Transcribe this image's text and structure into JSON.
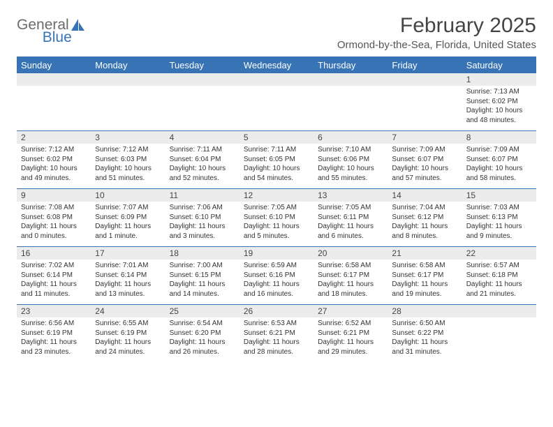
{
  "brand": {
    "text1": "General",
    "text2": "Blue"
  },
  "title": "February 2025",
  "location": "Ormond-by-the-Sea, Florida, United States",
  "colors": {
    "accent": "#3773b5",
    "header_text": "#ffffff",
    "num_bg": "#ececec",
    "body_bg": "#ffffff",
    "text": "#333333",
    "logo_grey": "#6b6b6b"
  },
  "day_names": [
    "Sunday",
    "Monday",
    "Tuesday",
    "Wednesday",
    "Thursday",
    "Friday",
    "Saturday"
  ],
  "weeks": [
    {
      "nums": [
        "",
        "",
        "",
        "",
        "",
        "",
        "1"
      ],
      "cells": [
        {},
        {},
        {},
        {},
        {},
        {},
        {
          "sunrise": "Sunrise: 7:13 AM",
          "sunset": "Sunset: 6:02 PM",
          "daylight": "Daylight: 10 hours and 48 minutes."
        }
      ]
    },
    {
      "nums": [
        "2",
        "3",
        "4",
        "5",
        "6",
        "7",
        "8"
      ],
      "cells": [
        {
          "sunrise": "Sunrise: 7:12 AM",
          "sunset": "Sunset: 6:02 PM",
          "daylight": "Daylight: 10 hours and 49 minutes."
        },
        {
          "sunrise": "Sunrise: 7:12 AM",
          "sunset": "Sunset: 6:03 PM",
          "daylight": "Daylight: 10 hours and 51 minutes."
        },
        {
          "sunrise": "Sunrise: 7:11 AM",
          "sunset": "Sunset: 6:04 PM",
          "daylight": "Daylight: 10 hours and 52 minutes."
        },
        {
          "sunrise": "Sunrise: 7:11 AM",
          "sunset": "Sunset: 6:05 PM",
          "daylight": "Daylight: 10 hours and 54 minutes."
        },
        {
          "sunrise": "Sunrise: 7:10 AM",
          "sunset": "Sunset: 6:06 PM",
          "daylight": "Daylight: 10 hours and 55 minutes."
        },
        {
          "sunrise": "Sunrise: 7:09 AM",
          "sunset": "Sunset: 6:07 PM",
          "daylight": "Daylight: 10 hours and 57 minutes."
        },
        {
          "sunrise": "Sunrise: 7:09 AM",
          "sunset": "Sunset: 6:07 PM",
          "daylight": "Daylight: 10 hours and 58 minutes."
        }
      ]
    },
    {
      "nums": [
        "9",
        "10",
        "11",
        "12",
        "13",
        "14",
        "15"
      ],
      "cells": [
        {
          "sunrise": "Sunrise: 7:08 AM",
          "sunset": "Sunset: 6:08 PM",
          "daylight": "Daylight: 11 hours and 0 minutes."
        },
        {
          "sunrise": "Sunrise: 7:07 AM",
          "sunset": "Sunset: 6:09 PM",
          "daylight": "Daylight: 11 hours and 1 minute."
        },
        {
          "sunrise": "Sunrise: 7:06 AM",
          "sunset": "Sunset: 6:10 PM",
          "daylight": "Daylight: 11 hours and 3 minutes."
        },
        {
          "sunrise": "Sunrise: 7:05 AM",
          "sunset": "Sunset: 6:10 PM",
          "daylight": "Daylight: 11 hours and 5 minutes."
        },
        {
          "sunrise": "Sunrise: 7:05 AM",
          "sunset": "Sunset: 6:11 PM",
          "daylight": "Daylight: 11 hours and 6 minutes."
        },
        {
          "sunrise": "Sunrise: 7:04 AM",
          "sunset": "Sunset: 6:12 PM",
          "daylight": "Daylight: 11 hours and 8 minutes."
        },
        {
          "sunrise": "Sunrise: 7:03 AM",
          "sunset": "Sunset: 6:13 PM",
          "daylight": "Daylight: 11 hours and 9 minutes."
        }
      ]
    },
    {
      "nums": [
        "16",
        "17",
        "18",
        "19",
        "20",
        "21",
        "22"
      ],
      "cells": [
        {
          "sunrise": "Sunrise: 7:02 AM",
          "sunset": "Sunset: 6:14 PM",
          "daylight": "Daylight: 11 hours and 11 minutes."
        },
        {
          "sunrise": "Sunrise: 7:01 AM",
          "sunset": "Sunset: 6:14 PM",
          "daylight": "Daylight: 11 hours and 13 minutes."
        },
        {
          "sunrise": "Sunrise: 7:00 AM",
          "sunset": "Sunset: 6:15 PM",
          "daylight": "Daylight: 11 hours and 14 minutes."
        },
        {
          "sunrise": "Sunrise: 6:59 AM",
          "sunset": "Sunset: 6:16 PM",
          "daylight": "Daylight: 11 hours and 16 minutes."
        },
        {
          "sunrise": "Sunrise: 6:58 AM",
          "sunset": "Sunset: 6:17 PM",
          "daylight": "Daylight: 11 hours and 18 minutes."
        },
        {
          "sunrise": "Sunrise: 6:58 AM",
          "sunset": "Sunset: 6:17 PM",
          "daylight": "Daylight: 11 hours and 19 minutes."
        },
        {
          "sunrise": "Sunrise: 6:57 AM",
          "sunset": "Sunset: 6:18 PM",
          "daylight": "Daylight: 11 hours and 21 minutes."
        }
      ]
    },
    {
      "nums": [
        "23",
        "24",
        "25",
        "26",
        "27",
        "28",
        ""
      ],
      "cells": [
        {
          "sunrise": "Sunrise: 6:56 AM",
          "sunset": "Sunset: 6:19 PM",
          "daylight": "Daylight: 11 hours and 23 minutes."
        },
        {
          "sunrise": "Sunrise: 6:55 AM",
          "sunset": "Sunset: 6:19 PM",
          "daylight": "Daylight: 11 hours and 24 minutes."
        },
        {
          "sunrise": "Sunrise: 6:54 AM",
          "sunset": "Sunset: 6:20 PM",
          "daylight": "Daylight: 11 hours and 26 minutes."
        },
        {
          "sunrise": "Sunrise: 6:53 AM",
          "sunset": "Sunset: 6:21 PM",
          "daylight": "Daylight: 11 hours and 28 minutes."
        },
        {
          "sunrise": "Sunrise: 6:52 AM",
          "sunset": "Sunset: 6:21 PM",
          "daylight": "Daylight: 11 hours and 29 minutes."
        },
        {
          "sunrise": "Sunrise: 6:50 AM",
          "sunset": "Sunset: 6:22 PM",
          "daylight": "Daylight: 11 hours and 31 minutes."
        },
        {}
      ]
    }
  ]
}
